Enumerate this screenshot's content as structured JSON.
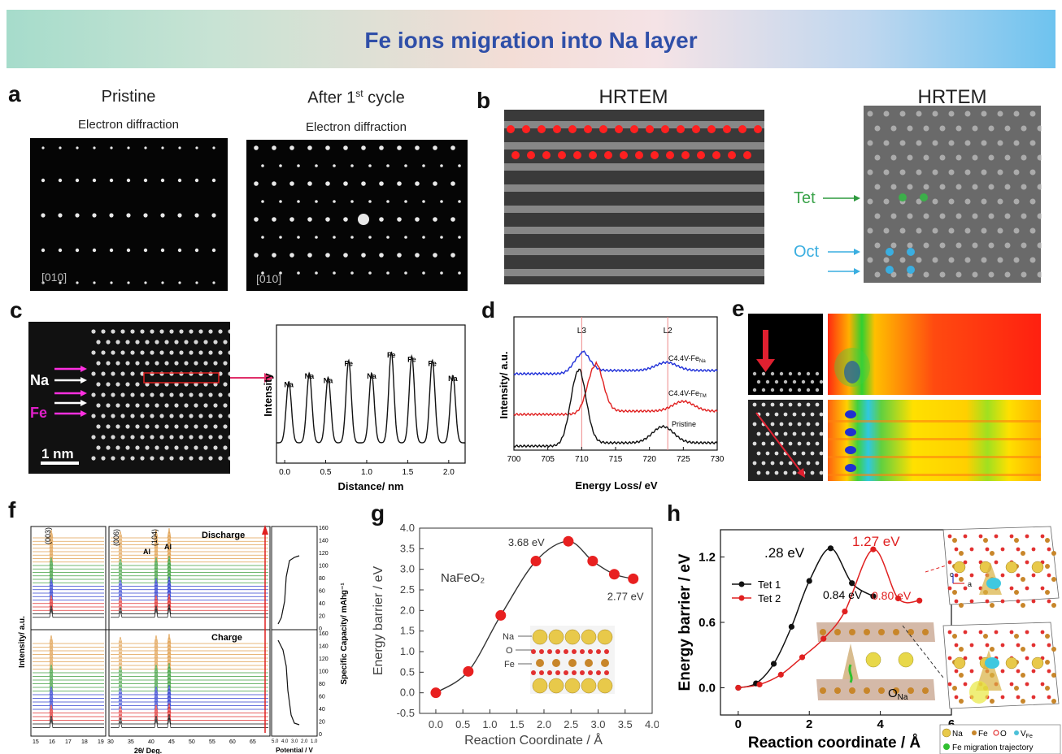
{
  "banner": {
    "title": "Fe ions migration into Na layer"
  },
  "panel_a": {
    "label": "a",
    "left_title": "Pristine",
    "right_title_main": "After 1",
    "right_title_sup": "st",
    "right_title_tail": " cycle",
    "subtitle": "Electron diffraction",
    "zone_axis": "[010]"
  },
  "panel_b": {
    "label": "b",
    "left_title": "HRTEM",
    "right_title": "HRTEM",
    "tet_label": "Tet",
    "oct_label": "Oct"
  },
  "panel_c": {
    "label": "c",
    "na_label": "Na",
    "fe_label": "Fe",
    "scale_bar": "1 nm",
    "peak_labels": [
      "Na",
      "Na",
      "Na",
      "Fe",
      "Na",
      "Fe",
      "Fe",
      "Fe",
      "Na"
    ],
    "chart_data": {
      "type": "line",
      "xlabel": "Distance/ nm",
      "ylabel": "Intensity",
      "xticks": [
        "0.0",
        "0.5",
        "1.0",
        "1.5",
        "2.0"
      ],
      "xlim": [
        -0.1,
        2.2
      ],
      "peak_positions": [
        0.05,
        0.3,
        0.53,
        0.78,
        1.06,
        1.3,
        1.55,
        1.8,
        2.05
      ]
    }
  },
  "panel_d": {
    "label": "d",
    "chart_data": {
      "type": "line",
      "xlabel": "Energy Loss/ eV",
      "ylabel": "Intensity/ a.u.",
      "xticks": [
        "700",
        "705",
        "710",
        "715",
        "720",
        "725",
        "730"
      ],
      "xlim": [
        700,
        730
      ],
      "markers": [
        {
          "name": "L3",
          "x": 710
        },
        {
          "name": "L2",
          "x": 722.7
        }
      ],
      "series": [
        {
          "name_main": "C4.4V-Fe",
          "name_sub": "Na",
          "color": "#1f2fd8"
        },
        {
          "name_main": "C4.4V-Fe",
          "name_sub": "TM",
          "color": "#e02020"
        },
        {
          "name_main": "Pristine",
          "name_sub": "",
          "color": "#111111"
        }
      ]
    }
  },
  "panel_e": {
    "label": "e"
  },
  "panel_f": {
    "label": "f",
    "peaks": [
      "(003)",
      "(006)",
      "Al",
      "(104)",
      "Al"
    ],
    "discharge_label": "Discharge",
    "charge_label": "Charge",
    "ylabel": "Intensity/ a.u.",
    "xlabel": "2θ/ Deg.",
    "xticks": [
      "15",
      "16",
      "17",
      "18",
      "19",
      "30",
      "35",
      "40",
      "45",
      "50",
      "55",
      "60",
      "65"
    ],
    "right_ylabel": "Specific Capacity/ mAhg⁻¹",
    "right_yticks": [
      "160",
      "140",
      "120",
      "100",
      "80",
      "60",
      "40",
      "20",
      "0"
    ],
    "right_xlabel": "Potential / V",
    "right_xticks": [
      "5.0",
      "4.0",
      "3.0",
      "2.0",
      "1.0"
    ]
  },
  "panel_g": {
    "label": "g",
    "compound": "NaFeO₂",
    "atom_labels": [
      "Na",
      "O",
      "Fe"
    ],
    "chart_data": {
      "type": "scatter",
      "xlabel": "Reaction Coordinate / Å",
      "ylabel": "Energy barrier / eV",
      "xlim": [
        -0.3,
        4.0
      ],
      "ylim": [
        -0.5,
        4.0
      ],
      "xticks": [
        "0.0",
        "0.5",
        "1.0",
        "1.5",
        "2.0",
        "2.5",
        "3.0",
        "3.5",
        "4.0"
      ],
      "yticks": [
        "-0.5",
        "0.0",
        "0.5",
        "1.0",
        "1.5",
        "2.0",
        "2.5",
        "3.0",
        "3.5",
        "4.0"
      ],
      "x": [
        0.0,
        0.6,
        1.2,
        1.85,
        2.45,
        2.9,
        3.3,
        3.65
      ],
      "y": [
        0.0,
        0.52,
        1.88,
        3.2,
        3.68,
        3.2,
        2.88,
        2.77
      ],
      "annotations": [
        "3.68 eV",
        "2.77 eV"
      ]
    }
  },
  "panel_h": {
    "label": "h",
    "o_label_main": "O",
    "o_label_sub": "Na",
    "axis_c": "c",
    "axis_a": "a",
    "chart_data": {
      "type": "line",
      "xlabel": "Reaction coordinate / Å",
      "ylabel": "Energy barrier / eV",
      "xlim": [
        -0.5,
        6.0
      ],
      "ylim": [
        -0.25,
        1.45
      ],
      "xticks": [
        "0",
        "2",
        "4",
        "6"
      ],
      "yticks": [
        "0.0",
        "0.6",
        "1.2"
      ],
      "series": [
        {
          "name": "Tet 1",
          "color": "#111111",
          "x": [
            0.0,
            0.5,
            1.0,
            1.5,
            2.0,
            2.6,
            3.2,
            3.8
          ],
          "y": [
            0.0,
            0.04,
            0.22,
            0.56,
            0.98,
            1.28,
            0.96,
            0.84
          ]
        },
        {
          "name": "Tet 2",
          "color": "#e02020",
          "x": [
            0.0,
            0.6,
            1.2,
            1.8,
            2.4,
            3.0,
            3.8,
            4.5,
            5.1
          ],
          "y": [
            0.0,
            0.03,
            0.12,
            0.28,
            0.45,
            0.7,
            1.27,
            0.82,
            0.8
          ]
        }
      ],
      "annotations": [
        ".28 eV",
        "1.27 eV",
        "0.84 eV",
        "0.80 eV"
      ]
    },
    "legend": {
      "items": [
        {
          "label": "Na",
          "color": "#e8c94a"
        },
        {
          "label": "Fe",
          "color": "#c8862a"
        },
        {
          "label": "O",
          "color": "#e23030"
        },
        {
          "label_main": "V",
          "label_sub": "Fe",
          "color": "#4cc0d8"
        }
      ],
      "trajectory": "Fe migration trajectory"
    }
  }
}
